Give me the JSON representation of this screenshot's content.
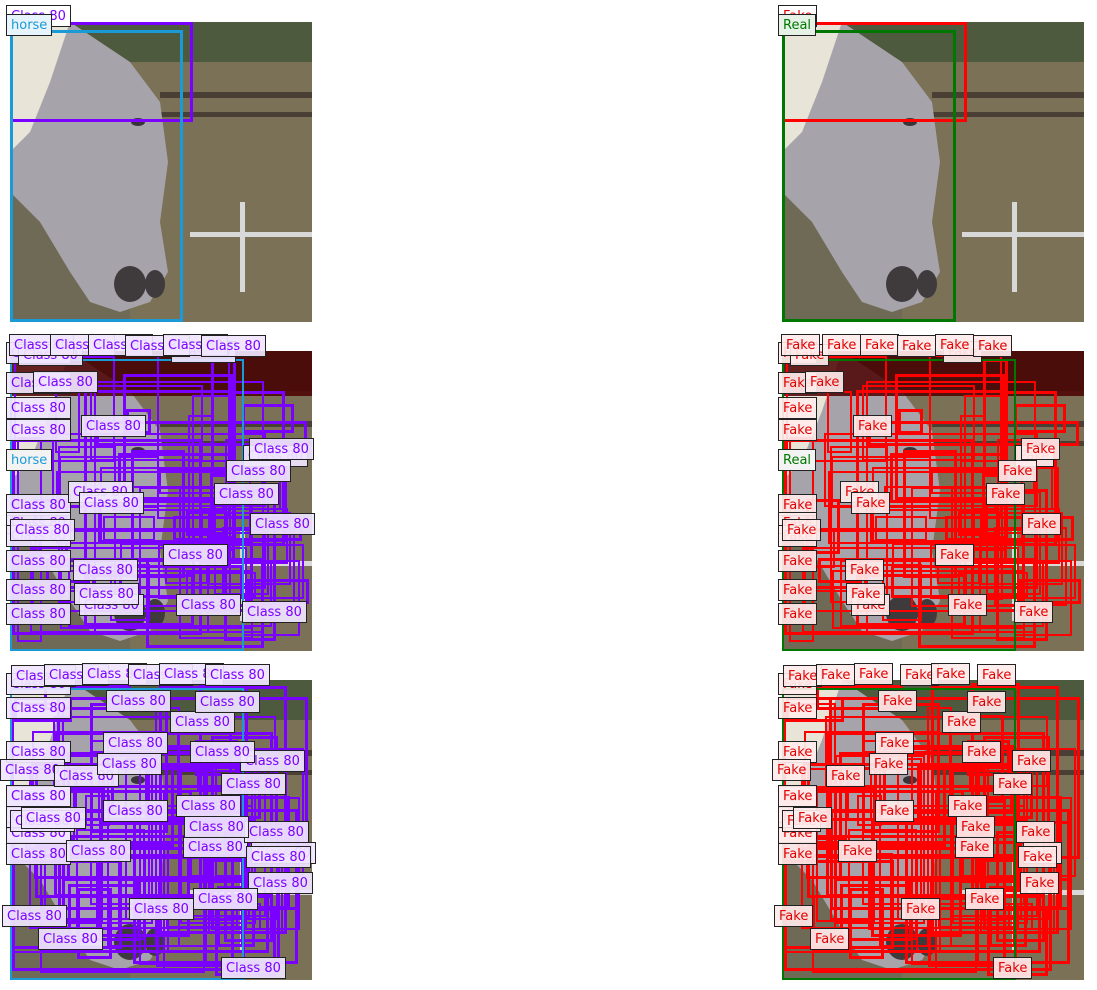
{
  "panels": [
    {
      "id": "r1-left",
      "caption_top": "Class 80",
      "caption": "horse"
    },
    {
      "id": "r1-right",
      "caption_top": "Fake",
      "caption": "Real"
    },
    {
      "id": "r2-left",
      "caption": "Class 80",
      "extra": "horse"
    },
    {
      "id": "r2-right",
      "caption": "Fake",
      "extra": "Real"
    },
    {
      "id": "r3-left",
      "caption": "Class 80"
    },
    {
      "id": "r3-right",
      "caption": "Fake"
    }
  ],
  "colors": {
    "pred_box": "#7a00ff",
    "gt_box": "#1a9ad6",
    "fake_box": "#ff0000",
    "real_box": "#007700",
    "pred_text": "#7a00ff",
    "fake_text": "#e00000",
    "real_text": "#007700",
    "gt_text": "#1a9ad6"
  },
  "labels": {
    "class80": "Class 80",
    "fake": "Fake",
    "real": "Real",
    "horse": "horse"
  }
}
